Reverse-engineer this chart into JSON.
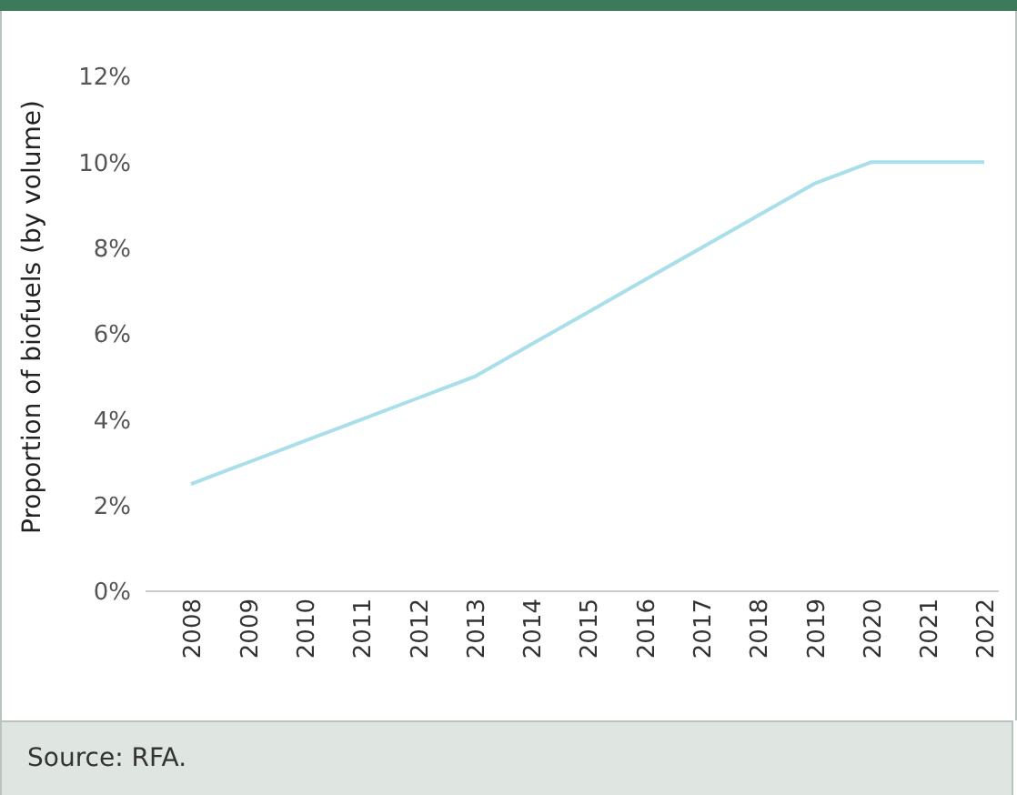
{
  "chart_data": {
    "type": "line",
    "ylabel": "Proportion of biofuels (by volume)",
    "categories": [
      "2008",
      "2009",
      "2010",
      "2011",
      "2012",
      "2013",
      "2014",
      "2015",
      "2016",
      "2017",
      "2018",
      "2019",
      "2020",
      "2021",
      "2022"
    ],
    "series": [
      {
        "color": "#a9dfea",
        "values": [
          2.5,
          3.0,
          3.5,
          4.0,
          4.5,
          5.0,
          5.75,
          6.5,
          7.25,
          8.0,
          8.75,
          9.5,
          10,
          10,
          10
        ]
      }
    ],
    "ylim": [
      0,
      12
    ],
    "yticks": [
      {
        "value": 0,
        "label": "0%"
      },
      {
        "value": 2,
        "label": "2%"
      },
      {
        "value": 4,
        "label": "4%"
      },
      {
        "value": 6,
        "label": "6%"
      },
      {
        "value": 8,
        "label": "8%"
      },
      {
        "value": 10,
        "label": "10%"
      },
      {
        "value": 12,
        "label": "12%"
      }
    ],
    "grid": false,
    "legend": false,
    "marker": "none",
    "line_style": "solid",
    "annotations": [
      "Source: RFA."
    ]
  }
}
